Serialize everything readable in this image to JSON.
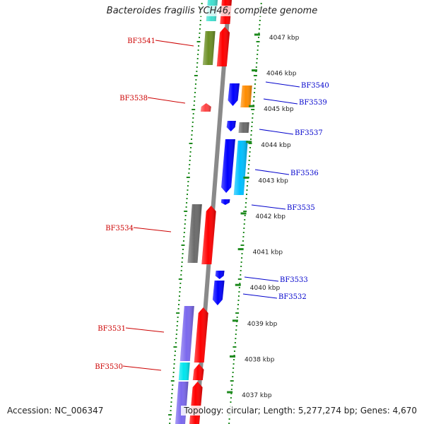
{
  "header": {
    "title": "Bacteroides fragilis YCH46, complete genome"
  },
  "footer": {
    "accession": "Accession: NC_006347",
    "topology": "Topology: circular; Length: 5,277,274 bp; Genes: 4,670"
  },
  "colors": {
    "backbone": "#8a8a8a",
    "tick": "#1e8a1e",
    "label_minus": "#cc0000",
    "label_plus": "#0000cc",
    "tick_text": "#222222"
  },
  "ticks": [
    {
      "label": "4047 kbp"
    },
    {
      "label": "4046 kbp"
    },
    {
      "label": "4045 kbp"
    },
    {
      "label": "4044 kbp"
    },
    {
      "label": "4043 kbp"
    },
    {
      "label": "4042 kbp"
    },
    {
      "label": "4041 kbp"
    },
    {
      "label": "4040 kbp"
    },
    {
      "label": "4039 kbp"
    },
    {
      "label": "4038 kbp"
    },
    {
      "label": "4037 kbp"
    }
  ],
  "gene_labels": [
    {
      "name": "BF3541",
      "strand": "minus"
    },
    {
      "name": "BF3538",
      "strand": "minus"
    },
    {
      "name": "BF3534",
      "strand": "minus"
    },
    {
      "name": "BF3531",
      "strand": "minus"
    },
    {
      "name": "BF3530",
      "strand": "minus"
    },
    {
      "name": "BF3540",
      "strand": "plus"
    },
    {
      "name": "BF3539",
      "strand": "plus"
    },
    {
      "name": "BF3537",
      "strand": "plus"
    },
    {
      "name": "BF3536",
      "strand": "plus"
    },
    {
      "name": "BF3535",
      "strand": "plus"
    },
    {
      "name": "BF3533",
      "strand": "plus"
    },
    {
      "name": "BF3532",
      "strand": "plus"
    }
  ],
  "features": [
    {
      "color": "#6b8e23"
    },
    {
      "color": "#ff0000"
    },
    {
      "color": "#ff0000"
    },
    {
      "color": "#6b6b6b"
    },
    {
      "color": "#ff0000"
    },
    {
      "color": "#7b68ee"
    },
    {
      "color": "#ff0000"
    },
    {
      "color": "#00e5ee"
    },
    {
      "color": "#ff0000"
    },
    {
      "color": "#7b68ee"
    },
    {
      "color": "#ff0000"
    },
    {
      "color": "#0000ff"
    },
    {
      "color": "#ff8c00"
    },
    {
      "color": "#0000ff"
    },
    {
      "color": "#6b6b6b"
    },
    {
      "color": "#0000ff"
    },
    {
      "color": "#00bfff"
    },
    {
      "color": "#0000ff"
    },
    {
      "color": "#0000ff"
    },
    {
      "color": "#0000ff"
    },
    {
      "color": "#40e0d0"
    },
    {
      "color": "#ff4444"
    }
  ]
}
